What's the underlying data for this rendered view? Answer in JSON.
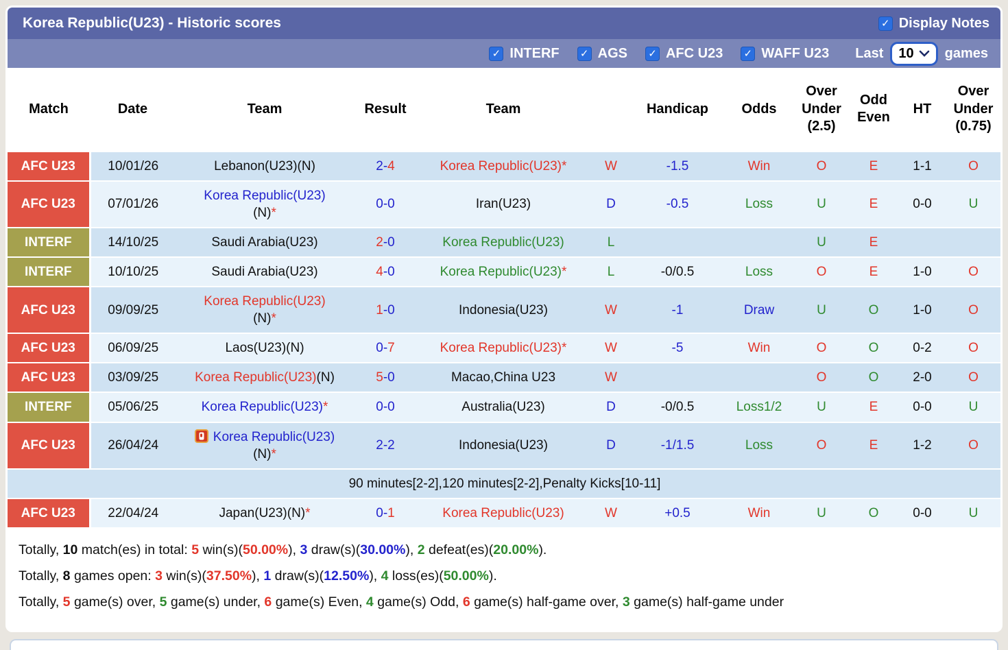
{
  "header": {
    "title": "Korea Republic(U23) - Historic scores",
    "display_notes_label": "Display Notes"
  },
  "filters": {
    "checkboxes": [
      "INTERF",
      "AGS",
      "AFC U23",
      "WAFF U23"
    ],
    "last_label": "Last",
    "selected_count": "10",
    "games_label": "games"
  },
  "colors": {
    "titlebar": "#5a66a6",
    "filterbar": "#7b86b8",
    "checkbox_blue": "#2b6fe0",
    "label_red": "#e05243",
    "label_olive": "#a5a14e",
    "row_dark": "#cfe2f2",
    "row_light": "#e9f3fb",
    "text_red": "#e2362a",
    "text_blue": "#2323cd",
    "text_green": "#2f8a2f"
  },
  "table": {
    "columns": [
      "Match",
      "Date",
      "Team",
      "Result",
      "Team",
      "",
      "Handicap",
      "Odds",
      "Over\nUnder\n(2.5)",
      "Odd\nEven",
      "HT",
      "Over\nUnder\n(0.75)"
    ],
    "rows": [
      {
        "label": "AFC U23",
        "label_c": "red",
        "shade": "dark",
        "date": "10/01/26",
        "team1": [
          [
            {
              "t": "Lebanon(U23)(N)",
              "c": "k"
            }
          ]
        ],
        "result": [
          {
            "t": "2-",
            "c": "b"
          },
          {
            "t": "4",
            "c": "r"
          }
        ],
        "team2": [
          [
            {
              "t": "Korea Republic(U23)*",
              "c": "r"
            }
          ]
        ],
        "wdl": [
          {
            "t": "W",
            "c": "r"
          }
        ],
        "handicap": [
          {
            "t": "-1.5",
            "c": "b"
          }
        ],
        "odds": [
          {
            "t": "Win",
            "c": "r"
          }
        ],
        "ou25": [
          {
            "t": "O",
            "c": "r"
          }
        ],
        "oe": [
          {
            "t": "E",
            "c": "r"
          }
        ],
        "ht": [
          {
            "t": "1-1",
            "c": "k"
          }
        ],
        "ou075": [
          {
            "t": "O",
            "c": "r"
          }
        ]
      },
      {
        "label": "AFC U23",
        "label_c": "red",
        "shade": "light",
        "date": "07/01/26",
        "team1": [
          [
            {
              "t": "Korea Republic(U23)",
              "c": "b"
            }
          ],
          [
            {
              "t": "(N)",
              "c": "k"
            },
            {
              "t": "*",
              "c": "r"
            }
          ]
        ],
        "result": [
          {
            "t": "0-0",
            "c": "b"
          }
        ],
        "team2": [
          [
            {
              "t": "Iran(U23)",
              "c": "k"
            }
          ]
        ],
        "wdl": [
          {
            "t": "D",
            "c": "b"
          }
        ],
        "handicap": [
          {
            "t": "-0.5",
            "c": "b"
          }
        ],
        "odds": [
          {
            "t": "Loss",
            "c": "g"
          }
        ],
        "ou25": [
          {
            "t": "U",
            "c": "g"
          }
        ],
        "oe": [
          {
            "t": "E",
            "c": "r"
          }
        ],
        "ht": [
          {
            "t": "0-0",
            "c": "k"
          }
        ],
        "ou075": [
          {
            "t": "U",
            "c": "g"
          }
        ]
      },
      {
        "label": "INTERF",
        "label_c": "olive",
        "shade": "dark",
        "date": "14/10/25",
        "team1": [
          [
            {
              "t": "Saudi Arabia(U23)",
              "c": "k"
            }
          ]
        ],
        "result": [
          {
            "t": "2",
            "c": "r"
          },
          {
            "t": "-0",
            "c": "b"
          }
        ],
        "team2": [
          [
            {
              "t": "Korea Republic(U23)",
              "c": "g"
            }
          ]
        ],
        "wdl": [
          {
            "t": "L",
            "c": "g"
          }
        ],
        "handicap": [],
        "odds": [],
        "ou25": [
          {
            "t": "U",
            "c": "g"
          }
        ],
        "oe": [
          {
            "t": "E",
            "c": "r"
          }
        ],
        "ht": [],
        "ou075": []
      },
      {
        "label": "INTERF",
        "label_c": "olive",
        "shade": "light",
        "date": "10/10/25",
        "team1": [
          [
            {
              "t": "Saudi Arabia(U23)",
              "c": "k"
            }
          ]
        ],
        "result": [
          {
            "t": "4",
            "c": "r"
          },
          {
            "t": "-0",
            "c": "b"
          }
        ],
        "team2": [
          [
            {
              "t": "Korea Republic(U23)",
              "c": "g"
            },
            {
              "t": "*",
              "c": "r"
            }
          ]
        ],
        "wdl": [
          {
            "t": "L",
            "c": "g"
          }
        ],
        "handicap": [
          {
            "t": "-0/0.5",
            "c": "k"
          }
        ],
        "odds": [
          {
            "t": "Loss",
            "c": "g"
          }
        ],
        "ou25": [
          {
            "t": "O",
            "c": "r"
          }
        ],
        "oe": [
          {
            "t": "E",
            "c": "r"
          }
        ],
        "ht": [
          {
            "t": "1-0",
            "c": "k"
          }
        ],
        "ou075": [
          {
            "t": "O",
            "c": "r"
          }
        ]
      },
      {
        "label": "AFC U23",
        "label_c": "red",
        "shade": "dark",
        "date": "09/09/25",
        "team1": [
          [
            {
              "t": "Korea Republic(U23)",
              "c": "r"
            }
          ],
          [
            {
              "t": "(N)",
              "c": "k"
            },
            {
              "t": "*",
              "c": "r"
            }
          ]
        ],
        "result": [
          {
            "t": "1",
            "c": "r"
          },
          {
            "t": "-0",
            "c": "b"
          }
        ],
        "team2": [
          [
            {
              "t": "Indonesia(U23)",
              "c": "k"
            }
          ]
        ],
        "wdl": [
          {
            "t": "W",
            "c": "r"
          }
        ],
        "handicap": [
          {
            "t": "-1",
            "c": "b"
          }
        ],
        "odds": [
          {
            "t": "Draw",
            "c": "b"
          }
        ],
        "ou25": [
          {
            "t": "U",
            "c": "g"
          }
        ],
        "oe": [
          {
            "t": "O",
            "c": "g"
          }
        ],
        "ht": [
          {
            "t": "1-0",
            "c": "k"
          }
        ],
        "ou075": [
          {
            "t": "O",
            "c": "r"
          }
        ]
      },
      {
        "label": "AFC U23",
        "label_c": "red",
        "shade": "light",
        "date": "06/09/25",
        "team1": [
          [
            {
              "t": "Laos(U23)(N)",
              "c": "k"
            }
          ]
        ],
        "result": [
          {
            "t": "0-",
            "c": "b"
          },
          {
            "t": "7",
            "c": "r"
          }
        ],
        "team2": [
          [
            {
              "t": "Korea Republic(U23)*",
              "c": "r"
            }
          ]
        ],
        "wdl": [
          {
            "t": "W",
            "c": "r"
          }
        ],
        "handicap": [
          {
            "t": "-5",
            "c": "b"
          }
        ],
        "odds": [
          {
            "t": "Win",
            "c": "r"
          }
        ],
        "ou25": [
          {
            "t": "O",
            "c": "r"
          }
        ],
        "oe": [
          {
            "t": "O",
            "c": "g"
          }
        ],
        "ht": [
          {
            "t": "0-2",
            "c": "k"
          }
        ],
        "ou075": [
          {
            "t": "O",
            "c": "r"
          }
        ]
      },
      {
        "label": "AFC U23",
        "label_c": "red",
        "shade": "dark",
        "date": "03/09/25",
        "team1": [
          [
            {
              "t": "Korea Republic(U23)",
              "c": "r"
            },
            {
              "t": "(N)",
              "c": "k"
            }
          ]
        ],
        "result": [
          {
            "t": "5",
            "c": "r"
          },
          {
            "t": "-0",
            "c": "b"
          }
        ],
        "team2": [
          [
            {
              "t": "Macao,China U23",
              "c": "k"
            }
          ]
        ],
        "wdl": [
          {
            "t": "W",
            "c": "r"
          }
        ],
        "handicap": [],
        "odds": [],
        "ou25": [
          {
            "t": "O",
            "c": "r"
          }
        ],
        "oe": [
          {
            "t": "O",
            "c": "g"
          }
        ],
        "ht": [
          {
            "t": "2-0",
            "c": "k"
          }
        ],
        "ou075": [
          {
            "t": "O",
            "c": "r"
          }
        ]
      },
      {
        "label": "INTERF",
        "label_c": "olive",
        "shade": "light",
        "date": "05/06/25",
        "team1": [
          [
            {
              "t": "Korea Republic(U23)",
              "c": "b"
            },
            {
              "t": "*",
              "c": "r"
            }
          ]
        ],
        "result": [
          {
            "t": "0-0",
            "c": "b"
          }
        ],
        "team2": [
          [
            {
              "t": "Australia(U23)",
              "c": "k"
            }
          ]
        ],
        "wdl": [
          {
            "t": "D",
            "c": "b"
          }
        ],
        "handicap": [
          {
            "t": "-0/0.5",
            "c": "k"
          }
        ],
        "odds": [
          {
            "t": "Loss1/2",
            "c": "g"
          }
        ],
        "ou25": [
          {
            "t": "U",
            "c": "g"
          }
        ],
        "oe": [
          {
            "t": "E",
            "c": "r"
          }
        ],
        "ht": [
          {
            "t": "0-0",
            "c": "k"
          }
        ],
        "ou075": [
          {
            "t": "U",
            "c": "g"
          }
        ]
      },
      {
        "label": "AFC U23",
        "label_c": "red",
        "shade": "dark",
        "date": "26/04/24",
        "team1": [
          [
            {
              "icon": true
            },
            {
              "t": "Korea Republic(U23)",
              "c": "b"
            }
          ],
          [
            {
              "t": "(N)",
              "c": "k"
            },
            {
              "t": "*",
              "c": "r"
            }
          ]
        ],
        "result": [
          {
            "t": "2-2",
            "c": "b"
          }
        ],
        "team2": [
          [
            {
              "t": "Indonesia(U23)",
              "c": "k"
            }
          ]
        ],
        "wdl": [
          {
            "t": "D",
            "c": "b"
          }
        ],
        "handicap": [
          {
            "t": "-1/1.5",
            "c": "b"
          }
        ],
        "odds": [
          {
            "t": "Loss",
            "c": "g"
          }
        ],
        "ou25": [
          {
            "t": "O",
            "c": "r"
          }
        ],
        "oe": [
          {
            "t": "E",
            "c": "r"
          }
        ],
        "ht": [
          {
            "t": "1-2",
            "c": "k"
          }
        ],
        "ou075": [
          {
            "t": "O",
            "c": "r"
          }
        ]
      },
      {
        "note": "90 minutes[2-2],120 minutes[2-2],Penalty Kicks[10-11]",
        "shade": "dark"
      },
      {
        "label": "AFC U23",
        "label_c": "red",
        "shade": "light",
        "date": "22/04/24",
        "team1": [
          [
            {
              "t": "Japan(U23)(N)",
              "c": "k"
            },
            {
              "t": "*",
              "c": "r"
            }
          ]
        ],
        "result": [
          {
            "t": "0-",
            "c": "b"
          },
          {
            "t": "1",
            "c": "r"
          }
        ],
        "team2": [
          [
            {
              "t": "Korea Republic(U23)",
              "c": "r"
            }
          ]
        ],
        "wdl": [
          {
            "t": "W",
            "c": "r"
          }
        ],
        "handicap": [
          {
            "t": "+0.5",
            "c": "b"
          }
        ],
        "odds": [
          {
            "t": "Win",
            "c": "r"
          }
        ],
        "ou25": [
          {
            "t": "U",
            "c": "g"
          }
        ],
        "oe": [
          {
            "t": "O",
            "c": "g"
          }
        ],
        "ht": [
          {
            "t": "0-0",
            "c": "k"
          }
        ],
        "ou075": [
          {
            "t": "U",
            "c": "g"
          }
        ]
      }
    ]
  },
  "summary": {
    "lines": [
      [
        {
          "t": "Totally, "
        },
        {
          "t": "10",
          "b": 1
        },
        {
          "t": " match(es) in total: "
        },
        {
          "t": "5",
          "c": "r",
          "b": 1
        },
        {
          "t": " win(s)("
        },
        {
          "t": "50.00%",
          "c": "r",
          "b": 1
        },
        {
          "t": "), "
        },
        {
          "t": "3",
          "c": "b",
          "b": 1
        },
        {
          "t": " draw(s)("
        },
        {
          "t": "30.00%",
          "c": "b",
          "b": 1
        },
        {
          "t": "), "
        },
        {
          "t": "2",
          "c": "g",
          "b": 1
        },
        {
          "t": " defeat(es)("
        },
        {
          "t": "20.00%",
          "c": "g",
          "b": 1
        },
        {
          "t": ")."
        }
      ],
      [
        {
          "t": "Totally, "
        },
        {
          "t": "8",
          "b": 1
        },
        {
          "t": " games open: "
        },
        {
          "t": "3",
          "c": "r",
          "b": 1
        },
        {
          "t": " win(s)("
        },
        {
          "t": "37.50%",
          "c": "r",
          "b": 1
        },
        {
          "t": "), "
        },
        {
          "t": "1",
          "c": "b",
          "b": 1
        },
        {
          "t": " draw(s)("
        },
        {
          "t": "12.50%",
          "c": "b",
          "b": 1
        },
        {
          "t": "), "
        },
        {
          "t": "4",
          "c": "g",
          "b": 1
        },
        {
          "t": " loss(es)("
        },
        {
          "t": "50.00%",
          "c": "g",
          "b": 1
        },
        {
          "t": ")."
        }
      ],
      [
        {
          "t": "Totally, "
        },
        {
          "t": "5",
          "c": "r",
          "b": 1
        },
        {
          "t": " game(s) over, "
        },
        {
          "t": "5",
          "c": "g",
          "b": 1
        },
        {
          "t": " game(s) under, "
        },
        {
          "t": "6",
          "c": "r",
          "b": 1
        },
        {
          "t": " game(s) Even, "
        },
        {
          "t": "4",
          "c": "g",
          "b": 1
        },
        {
          "t": " game(s) Odd, "
        },
        {
          "t": "6",
          "c": "r",
          "b": 1
        },
        {
          "t": " game(s) half-game over, "
        },
        {
          "t": "3",
          "c": "g",
          "b": 1
        },
        {
          "t": " game(s) half-game under"
        }
      ]
    ]
  }
}
